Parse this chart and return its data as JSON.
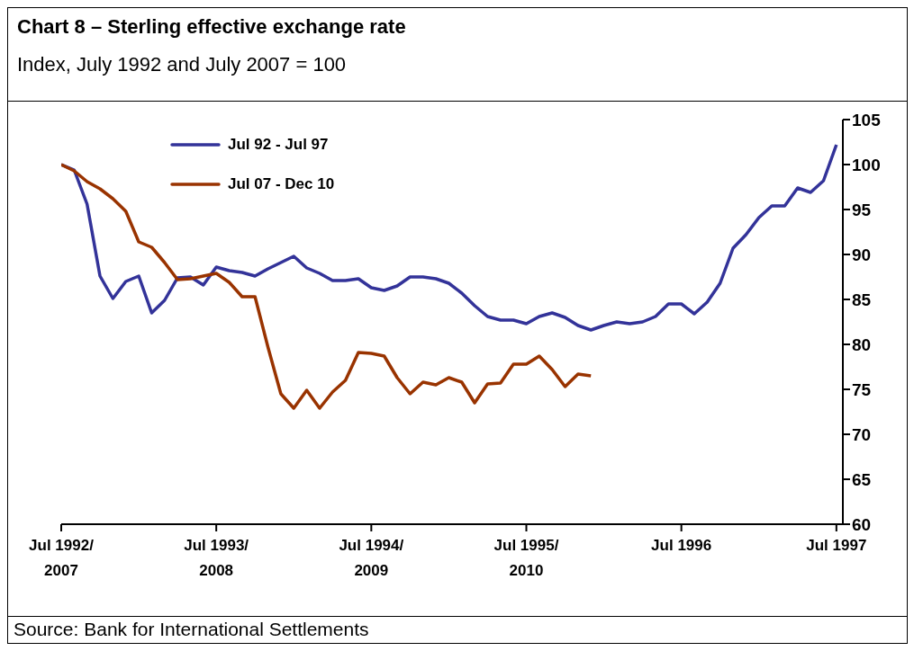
{
  "chart_data": {
    "type": "line",
    "title": "Chart 8 – Sterling effective exchange rate",
    "subtitle": "Index, July 1992 and July 2007 = 100",
    "annotations": [
      "Source: Bank for International Settlements"
    ],
    "categories": [
      "Jul 1992/2007",
      null,
      null,
      null,
      null,
      null,
      null,
      null,
      null,
      null,
      null,
      null,
      "Jul 1993/2008",
      null,
      null,
      null,
      null,
      null,
      null,
      null,
      null,
      null,
      null,
      null,
      "Jul 1994/2009",
      null,
      null,
      null,
      null,
      null,
      null,
      null,
      null,
      null,
      null,
      null,
      "Jul 1995/2010",
      null,
      null,
      null,
      null,
      null,
      null,
      null,
      null,
      null,
      null,
      null,
      "Jul 1996",
      null,
      null,
      null,
      null,
      null,
      null,
      null,
      null,
      null,
      null,
      null,
      "Jul 1997"
    ],
    "ylim": [
      60,
      105
    ],
    "yticks": [
      60,
      65,
      70,
      75,
      80,
      85,
      90,
      95,
      100,
      105
    ],
    "grid": false,
    "legend": "top left",
    "marker": "none",
    "line_style": "solid",
    "series": [
      {
        "name": "Jul 92 - Jul 97",
        "color": "#333399",
        "values": [
          100.0,
          99.4,
          95.6,
          87.6,
          85.1,
          87.0,
          87.6,
          83.5,
          84.9,
          87.4,
          87.5,
          86.6,
          88.6,
          88.2,
          88.0,
          87.6,
          88.4,
          89.1,
          89.8,
          88.5,
          87.9,
          87.1,
          87.1,
          87.3,
          86.3,
          86.0,
          86.5,
          87.5,
          87.5,
          87.3,
          86.8,
          85.7,
          84.3,
          83.1,
          82.7,
          82.7,
          82.3,
          83.1,
          83.5,
          83.0,
          82.1,
          81.6,
          82.1,
          82.5,
          82.3,
          82.5,
          83.1,
          84.5,
          84.5,
          83.4,
          84.7,
          86.8,
          90.7,
          92.2,
          94.1,
          95.4,
          95.4,
          97.4,
          96.9,
          98.2,
          102.2
        ]
      },
      {
        "name": "Jul 07 - Dec 10",
        "color": "#993300",
        "values": [
          100.0,
          99.3,
          98.1,
          97.3,
          96.2,
          94.8,
          91.4,
          90.8,
          89.1,
          87.2,
          87.3,
          87.6,
          87.9,
          86.9,
          85.3,
          85.3,
          79.7,
          74.5,
          72.9,
          74.9,
          72.9,
          74.7,
          76.0,
          79.1,
          79.0,
          78.7,
          76.3,
          74.5,
          75.8,
          75.5,
          76.3,
          75.8,
          73.5,
          75.6,
          75.7,
          77.8,
          77.8,
          78.7,
          77.2,
          75.3,
          76.7,
          76.5,
          null,
          null,
          null,
          null,
          null,
          null,
          null,
          null,
          null,
          null,
          null,
          null,
          null,
          null,
          null,
          null,
          null,
          null,
          null
        ]
      }
    ]
  }
}
